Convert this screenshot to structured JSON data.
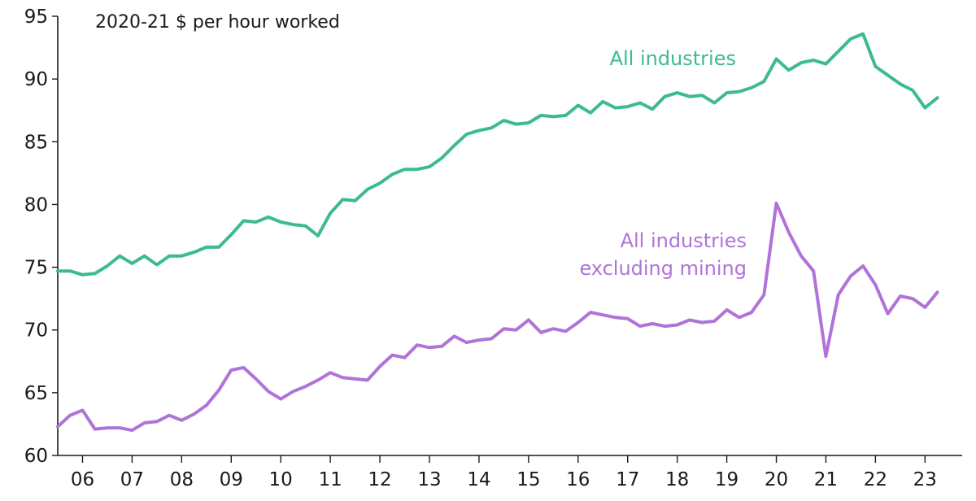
{
  "chart_data": {
    "type": "line",
    "unit_label": "2020-21 $ per hour worked",
    "ylim": [
      60,
      95
    ],
    "yticks": [
      60,
      65,
      70,
      75,
      80,
      85,
      90,
      95
    ],
    "xlim": [
      2005.5,
      2023.75
    ],
    "xtick_labels": [
      "06",
      "07",
      "08",
      "09",
      "10",
      "11",
      "12",
      "13",
      "14",
      "15",
      "16",
      "17",
      "18",
      "19",
      "20",
      "21",
      "22",
      "23"
    ],
    "grid": false,
    "series": [
      {
        "name": "All industries",
        "color": "#3dbb8f",
        "values": [
          [
            2005.5,
            74.7
          ],
          [
            2005.75,
            74.7
          ],
          [
            2006.0,
            74.4
          ],
          [
            2006.25,
            74.5
          ],
          [
            2006.5,
            75.1
          ],
          [
            2006.75,
            75.9
          ],
          [
            2007.0,
            75.3
          ],
          [
            2007.25,
            75.9
          ],
          [
            2007.5,
            75.2
          ],
          [
            2007.75,
            75.9
          ],
          [
            2008.0,
            75.9
          ],
          [
            2008.25,
            76.2
          ],
          [
            2008.5,
            76.6
          ],
          [
            2008.75,
            76.6
          ],
          [
            2009.0,
            77.6
          ],
          [
            2009.25,
            78.7
          ],
          [
            2009.5,
            78.6
          ],
          [
            2009.75,
            79.0
          ],
          [
            2010.0,
            78.6
          ],
          [
            2010.25,
            78.4
          ],
          [
            2010.5,
            78.3
          ],
          [
            2010.75,
            77.5
          ],
          [
            2011.0,
            79.3
          ],
          [
            2011.25,
            80.4
          ],
          [
            2011.5,
            80.3
          ],
          [
            2011.75,
            81.2
          ],
          [
            2012.0,
            81.7
          ],
          [
            2012.25,
            82.4
          ],
          [
            2012.5,
            82.8
          ],
          [
            2012.75,
            82.8
          ],
          [
            2013.0,
            83.0
          ],
          [
            2013.25,
            83.7
          ],
          [
            2013.5,
            84.7
          ],
          [
            2013.75,
            85.6
          ],
          [
            2014.0,
            85.9
          ],
          [
            2014.25,
            86.1
          ],
          [
            2014.5,
            86.7
          ],
          [
            2014.75,
            86.4
          ],
          [
            2015.0,
            86.5
          ],
          [
            2015.25,
            87.1
          ],
          [
            2015.5,
            87.0
          ],
          [
            2015.75,
            87.1
          ],
          [
            2016.0,
            87.9
          ],
          [
            2016.25,
            87.3
          ],
          [
            2016.5,
            88.2
          ],
          [
            2016.75,
            87.7
          ],
          [
            2017.0,
            87.8
          ],
          [
            2017.25,
            88.1
          ],
          [
            2017.5,
            87.6
          ],
          [
            2017.75,
            88.6
          ],
          [
            2018.0,
            88.9
          ],
          [
            2018.25,
            88.6
          ],
          [
            2018.5,
            88.7
          ],
          [
            2018.75,
            88.1
          ],
          [
            2019.0,
            88.9
          ],
          [
            2019.25,
            89.0
          ],
          [
            2019.5,
            89.3
          ],
          [
            2019.75,
            89.8
          ],
          [
            2020.0,
            91.6
          ],
          [
            2020.25,
            90.7
          ],
          [
            2020.5,
            91.3
          ],
          [
            2020.75,
            91.5
          ],
          [
            2021.0,
            91.2
          ],
          [
            2021.25,
            92.2
          ],
          [
            2021.5,
            93.2
          ],
          [
            2021.75,
            93.6
          ],
          [
            2022.0,
            91.0
          ],
          [
            2022.25,
            90.3
          ],
          [
            2022.5,
            89.6
          ],
          [
            2022.75,
            89.1
          ],
          [
            2023.0,
            87.7
          ],
          [
            2023.25,
            88.5
          ]
        ]
      },
      {
        "name": "All industries\nexcluding mining",
        "color": "#b073d8",
        "values": [
          [
            2005.5,
            62.3
          ],
          [
            2005.75,
            63.2
          ],
          [
            2006.0,
            63.6
          ],
          [
            2006.25,
            62.1
          ],
          [
            2006.5,
            62.2
          ],
          [
            2006.75,
            62.2
          ],
          [
            2007.0,
            62.0
          ],
          [
            2007.25,
            62.6
          ],
          [
            2007.5,
            62.7
          ],
          [
            2007.75,
            63.2
          ],
          [
            2008.0,
            62.8
          ],
          [
            2008.25,
            63.3
          ],
          [
            2008.5,
            64.0
          ],
          [
            2008.75,
            65.2
          ],
          [
            2009.0,
            66.8
          ],
          [
            2009.25,
            67.0
          ],
          [
            2009.5,
            66.1
          ],
          [
            2009.75,
            65.1
          ],
          [
            2010.0,
            64.5
          ],
          [
            2010.25,
            65.1
          ],
          [
            2010.5,
            65.5
          ],
          [
            2010.75,
            66.0
          ],
          [
            2011.0,
            66.6
          ],
          [
            2011.25,
            66.2
          ],
          [
            2011.5,
            66.1
          ],
          [
            2011.75,
            66.0
          ],
          [
            2012.0,
            67.1
          ],
          [
            2012.25,
            68.0
          ],
          [
            2012.5,
            67.8
          ],
          [
            2012.75,
            68.8
          ],
          [
            2013.0,
            68.6
          ],
          [
            2013.25,
            68.7
          ],
          [
            2013.5,
            69.5
          ],
          [
            2013.75,
            69.0
          ],
          [
            2014.0,
            69.2
          ],
          [
            2014.25,
            69.3
          ],
          [
            2014.5,
            70.1
          ],
          [
            2014.75,
            70.0
          ],
          [
            2015.0,
            70.8
          ],
          [
            2015.25,
            69.8
          ],
          [
            2015.5,
            70.1
          ],
          [
            2015.75,
            69.9
          ],
          [
            2016.0,
            70.6
          ],
          [
            2016.25,
            71.4
          ],
          [
            2016.5,
            71.2
          ],
          [
            2016.75,
            71.0
          ],
          [
            2017.0,
            70.9
          ],
          [
            2017.25,
            70.3
          ],
          [
            2017.5,
            70.5
          ],
          [
            2017.75,
            70.3
          ],
          [
            2018.0,
            70.4
          ],
          [
            2018.25,
            70.8
          ],
          [
            2018.5,
            70.6
          ],
          [
            2018.75,
            70.7
          ],
          [
            2019.0,
            71.6
          ],
          [
            2019.25,
            71.0
          ],
          [
            2019.5,
            71.4
          ],
          [
            2019.75,
            72.8
          ],
          [
            2020.0,
            80.1
          ],
          [
            2020.25,
            77.8
          ],
          [
            2020.5,
            75.9
          ],
          [
            2020.75,
            74.7
          ],
          [
            2021.0,
            67.9
          ],
          [
            2021.25,
            72.8
          ],
          [
            2021.5,
            74.3
          ],
          [
            2021.75,
            75.1
          ],
          [
            2022.0,
            73.6
          ],
          [
            2022.25,
            71.3
          ],
          [
            2022.5,
            72.7
          ],
          [
            2022.75,
            72.5
          ],
          [
            2023.0,
            71.8
          ],
          [
            2023.25,
            73.0
          ]
        ]
      }
    ]
  }
}
